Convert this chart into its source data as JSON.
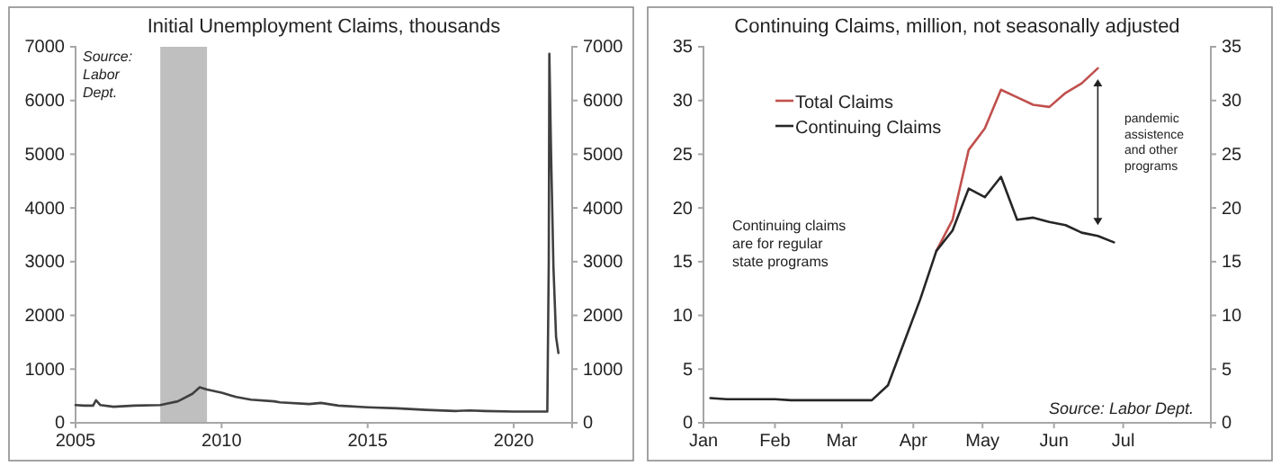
{
  "chart_data": [
    {
      "type": "line",
      "title": "Initial Unemployment Claims, thousands",
      "xlim": [
        2005,
        2022
      ],
      "xticks": [
        2005,
        2010,
        2015,
        2020
      ],
      "ylim": [
        0,
        7000
      ],
      "yticks": [
        0,
        1000,
        2000,
        3000,
        4000,
        5000,
        6000,
        7000
      ],
      "y2lim": [
        0,
        7000
      ],
      "y2ticks": [
        0,
        1000,
        2000,
        3000,
        4000,
        5000,
        6000,
        7000
      ],
      "bands": [
        {
          "axis": "x",
          "from": 2007.9,
          "to": 2009.5,
          "color": "#bfbfbf"
        }
      ],
      "annotations": [
        "Source: Labor Dept."
      ],
      "x": [
        2005,
        2005.3,
        2005.6,
        2005.7,
        2005.85,
        2006.3,
        2007,
        2007.9,
        2008.5,
        2009,
        2009.25,
        2009.5,
        2010,
        2010.5,
        2011,
        2011.8,
        2012,
        2013,
        2013.4,
        2014,
        2015,
        2016,
        2017,
        2018,
        2018.5,
        2019,
        2020,
        2021.15,
        2021.2,
        2021.22,
        2021.28,
        2021.36,
        2021.45,
        2021.53
      ],
      "series": [
        {
          "color": "#404040",
          "values": [
            330,
            320,
            320,
            420,
            330,
            300,
            320,
            330,
            400,
            540,
            660,
            620,
            560,
            480,
            430,
            400,
            380,
            350,
            370,
            320,
            290,
            270,
            240,
            220,
            230,
            220,
            210,
            210,
            3000,
            6870,
            5000,
            2900,
            1600,
            1300
          ]
        }
      ]
    },
    {
      "type": "line",
      "title": "Continuing Claims, million, not seasonally adjusted",
      "legend": "top left",
      "xlim": [
        "2020-01-01",
        "2020-08-08"
      ],
      "xticks": [
        {
          "value": "2020-01-01",
          "label": "Jan"
        },
        {
          "value": "2020-02-01",
          "label": "Feb"
        },
        {
          "value": "2020-03-01",
          "label": "Mar"
        },
        {
          "value": "2020-04-01",
          "label": "Apr"
        },
        {
          "value": "2020-05-01",
          "label": "May"
        },
        {
          "value": "2020-06-01",
          "label": "Jun"
        },
        {
          "value": "2020-07-01",
          "label": "Jul"
        }
      ],
      "ylim": [
        0,
        35
      ],
      "yticks": [
        0,
        5,
        10,
        15,
        20,
        25,
        30,
        35
      ],
      "y2lim": [
        0,
        35
      ],
      "y2ticks": [
        0,
        5,
        10,
        15,
        20,
        25,
        30,
        35
      ],
      "annotations": [
        "Continuing claims are for regular state programs",
        "pandemic assistence and other programs",
        "Source: Labor Dept."
      ],
      "x": [
        "2020-01-04",
        "2020-01-11",
        "2020-01-18",
        "2020-01-25",
        "2020-02-01",
        "2020-02-08",
        "2020-02-15",
        "2020-02-22",
        "2020-02-29",
        "2020-03-07",
        "2020-03-14",
        "2020-03-21",
        "2020-03-28",
        "2020-04-04",
        "2020-04-11",
        "2020-04-18",
        "2020-04-25",
        "2020-05-02",
        "2020-05-09",
        "2020-05-16",
        "2020-05-23",
        "2020-05-30",
        "2020-06-06",
        "2020-06-13",
        "2020-06-20",
        "2020-06-27"
      ],
      "series": [
        {
          "name": "Total Claims",
          "color": "#c0504d",
          "values": [
            null,
            null,
            null,
            null,
            null,
            null,
            null,
            null,
            null,
            null,
            null,
            null,
            null,
            null,
            16.0,
            18.9,
            25.4,
            27.4,
            31.0,
            30.3,
            29.6,
            29.4,
            30.7,
            31.6,
            33.0,
            null
          ]
        },
        {
          "name": "Continuing Claims",
          "color": "#262626",
          "values": [
            2.3,
            2.2,
            2.2,
            2.2,
            2.2,
            2.1,
            2.1,
            2.1,
            2.1,
            2.1,
            2.1,
            3.5,
            7.5,
            11.5,
            16.0,
            17.9,
            21.8,
            21.0,
            22.9,
            18.9,
            19.1,
            18.7,
            18.4,
            17.7,
            17.4,
            16.8
          ]
        }
      ]
    }
  ]
}
